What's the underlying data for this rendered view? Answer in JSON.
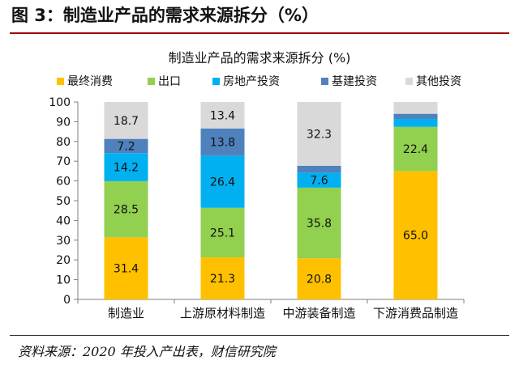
{
  "figure_title": "图 3：制造业产品的需求来源拆分（%）",
  "source_note": "资料来源：2020 年投入产出表，财信研究院",
  "chart_data": {
    "type": "bar",
    "stacked": true,
    "title": "制造业产品的需求来源拆分 (%)",
    "categories": [
      "制造业",
      "上游原材料制造",
      "中游装备制造",
      "下游消费品制造"
    ],
    "series": [
      {
        "name": "最终消费",
        "color": "#ffc000",
        "values": [
          31.4,
          21.3,
          20.8,
          65.0
        ],
        "labels": [
          "31.4",
          "21.3",
          "20.8",
          "65.0"
        ]
      },
      {
        "name": "出口",
        "color": "#92d050",
        "values": [
          28.5,
          25.1,
          35.8,
          22.4
        ],
        "labels": [
          "28.5",
          "25.1",
          "35.8",
          "22.4"
        ]
      },
      {
        "name": "房地产投资",
        "color": "#00b0f0",
        "values": [
          14.2,
          26.4,
          7.6,
          4.0
        ],
        "labels": [
          "14.2",
          "26.4",
          "7.6",
          ""
        ]
      },
      {
        "name": "基建投资",
        "color": "#4f81bd",
        "values": [
          7.2,
          13.8,
          3.5,
          2.6
        ],
        "labels": [
          "7.2",
          "13.8",
          "",
          ""
        ]
      },
      {
        "name": "其他投资",
        "color": "#d9d9d9",
        "values": [
          18.7,
          13.4,
          32.3,
          6.0
        ],
        "labels": [
          "18.7",
          "13.4",
          "32.3",
          ""
        ]
      }
    ],
    "ylim": [
      0,
      100
    ],
    "yticks": [
      0,
      10,
      20,
      30,
      40,
      50,
      60,
      70,
      80,
      90,
      100
    ],
    "legend_position": "top",
    "grid": false
  }
}
